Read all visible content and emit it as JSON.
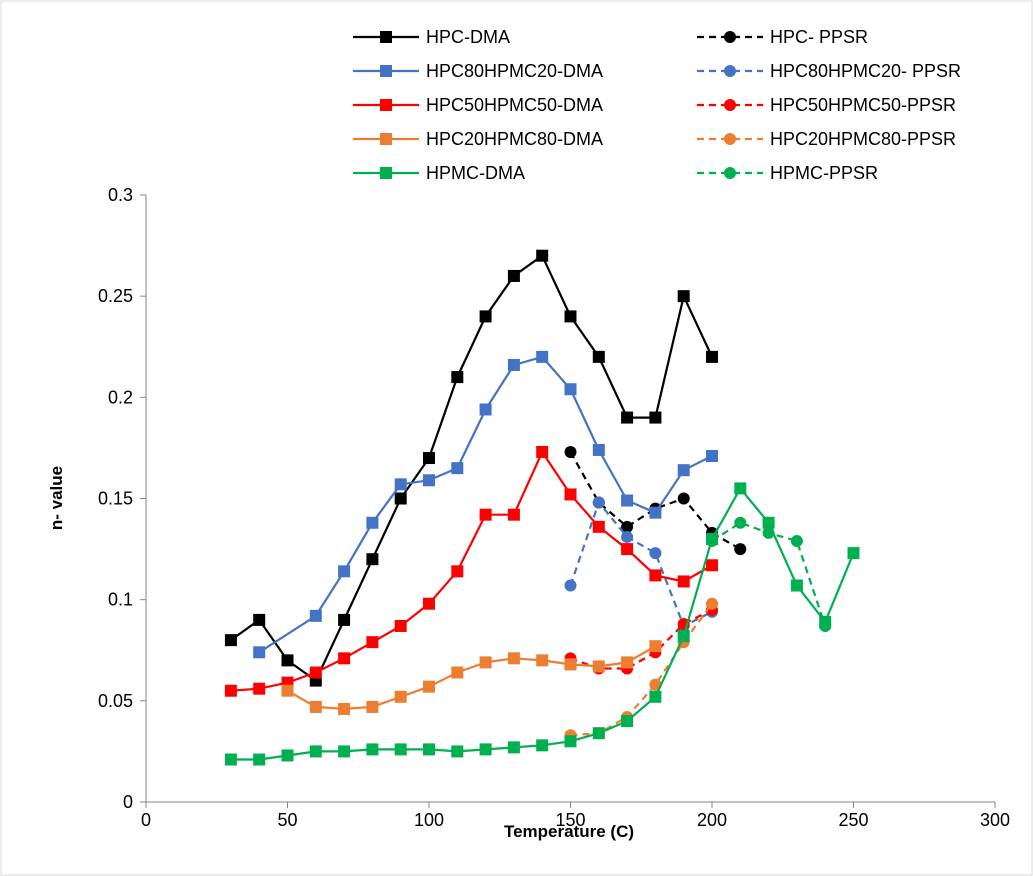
{
  "chart_data": {
    "type": "line",
    "title": "",
    "xlabel": "Temperature (C)",
    "ylabel": "n- value",
    "xlim": [
      0,
      300
    ],
    "ylim": [
      0,
      0.3
    ],
    "x_ticks": [
      0,
      50,
      100,
      150,
      200,
      250,
      300
    ],
    "y_ticks": [
      0,
      0.05,
      0.1,
      0.15,
      0.2,
      0.25,
      0.3
    ],
    "x_tick_labels": [
      "0",
      "50",
      "100",
      "150",
      "200",
      "250",
      "300"
    ],
    "y_tick_labels": [
      "0",
      "0.05",
      "0.1",
      "0.15",
      "0.2",
      "0.25",
      "0.3"
    ],
    "grid": false,
    "legend_position": "top, two columns",
    "series": [
      {
        "name": "HPC-DMA",
        "color": "#000000",
        "marker": "square",
        "dash": "solid",
        "x": [
          30,
          40,
          50,
          60,
          70,
          80,
          90,
          100,
          110,
          120,
          130,
          140,
          150,
          160,
          170,
          180,
          190,
          200
        ],
        "y": [
          0.08,
          0.09,
          0.07,
          0.06,
          0.09,
          0.12,
          0.15,
          0.17,
          0.21,
          0.24,
          0.26,
          0.27,
          0.24,
          0.22,
          0.19,
          0.19,
          0.25,
          0.22
        ]
      },
      {
        "name": "HPC- PPSR",
        "color": "#000000",
        "marker": "circle",
        "dash": "dashed",
        "x": [
          150,
          160,
          170,
          180,
          190,
          200,
          210
        ],
        "y": [
          0.173,
          0.148,
          0.136,
          0.145,
          0.15,
          0.133,
          0.125
        ]
      },
      {
        "name": "HPC80HPMC20-DMA",
        "color": "#4472C4",
        "marker": "square",
        "dash": "solid",
        "x": [
          40,
          60,
          70,
          80,
          90,
          100,
          110,
          120,
          130,
          140,
          150,
          160,
          170,
          180,
          190,
          200
        ],
        "y": [
          0.074,
          0.092,
          0.114,
          0.138,
          0.157,
          0.159,
          0.165,
          0.194,
          0.216,
          0.22,
          0.204,
          0.174,
          0.149,
          0.143,
          0.164,
          0.171
        ]
      },
      {
        "name": "HPC80HPMC20- PPSR",
        "color": "#4472C4",
        "marker": "circle",
        "dash": "dashed",
        "x": [
          150,
          160,
          170,
          180,
          190,
          200
        ],
        "y": [
          0.107,
          0.148,
          0.131,
          0.123,
          0.087,
          0.094
        ]
      },
      {
        "name": "HPC50HPMC50-DMA",
        "color": "#FF0000",
        "marker": "square",
        "dash": "solid",
        "x": [
          30,
          40,
          50,
          60,
          70,
          80,
          90,
          100,
          110,
          120,
          130,
          140,
          150,
          160,
          170,
          180,
          190,
          200
        ],
        "y": [
          0.055,
          0.056,
          0.059,
          0.064,
          0.071,
          0.079,
          0.087,
          0.098,
          0.114,
          0.142,
          0.142,
          0.173,
          0.152,
          0.136,
          0.125,
          0.112,
          0.109,
          0.117
        ]
      },
      {
        "name": "HPC50HPMC50-PPSR",
        "color": "#FF0000",
        "marker": "circle",
        "dash": "dashed",
        "x": [
          150,
          160,
          170,
          180,
          190,
          200
        ],
        "y": [
          0.071,
          0.066,
          0.066,
          0.074,
          0.088,
          0.095
        ]
      },
      {
        "name": "HPC20HPMC80-DMA",
        "color": "#ED7D31",
        "marker": "square",
        "dash": "solid",
        "x": [
          50,
          60,
          70,
          80,
          90,
          100,
          110,
          120,
          130,
          140,
          150,
          160,
          170,
          180
        ],
        "y": [
          0.055,
          0.047,
          0.046,
          0.047,
          0.052,
          0.057,
          0.064,
          0.069,
          0.071,
          0.07,
          0.068,
          0.067,
          0.069,
          0.077
        ]
      },
      {
        "name": "HPC20HPMC80-PPSR",
        "color": "#ED7D31",
        "marker": "circle",
        "dash": "dashed",
        "x": [
          150,
          160,
          170,
          180,
          190,
          200
        ],
        "y": [
          0.033,
          0.034,
          0.042,
          0.058,
          0.079,
          0.098
        ]
      },
      {
        "name": "HPMC-DMA",
        "color": "#00B050",
        "marker": "square",
        "dash": "solid",
        "x": [
          30,
          40,
          50,
          60,
          70,
          80,
          90,
          100,
          110,
          120,
          130,
          140,
          150,
          160,
          170,
          180,
          190,
          200,
          210,
          220,
          230,
          240,
          250
        ],
        "y": [
          0.021,
          0.021,
          0.023,
          0.025,
          0.025,
          0.026,
          0.026,
          0.026,
          0.025,
          0.026,
          0.027,
          0.028,
          0.03,
          0.034,
          0.04,
          0.052,
          0.082,
          0.13,
          0.155,
          0.138,
          0.107,
          0.089,
          0.123
        ]
      },
      {
        "name": "HPMC-PPSR",
        "color": "#00B050",
        "marker": "circle",
        "dash": "dashed",
        "x": [
          200,
          210,
          220,
          230,
          240
        ],
        "y": [
          0.129,
          0.138,
          0.133,
          0.129,
          0.087
        ]
      }
    ]
  }
}
